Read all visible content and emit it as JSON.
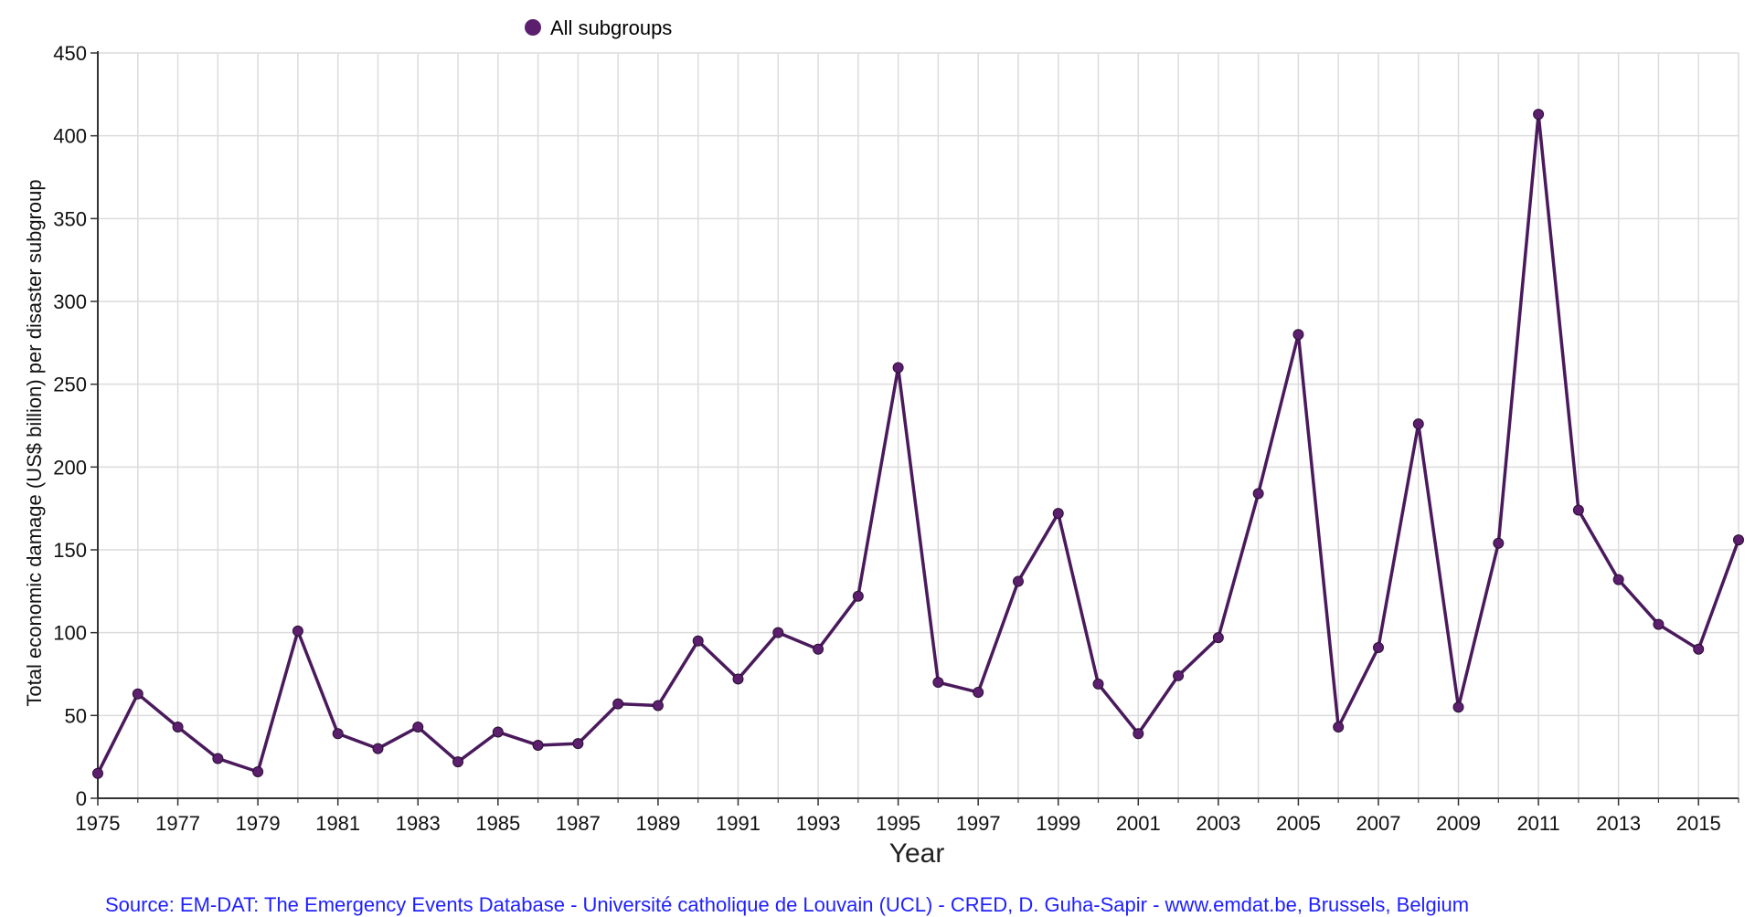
{
  "chart_data": {
    "type": "line",
    "legend": {
      "label": "All subgroups",
      "placement": "top-center"
    },
    "xlabel": "Year",
    "ylabel": "Total economic damage (US$ billion) per  disaster subgroup",
    "xlim": [
      1975,
      2016
    ],
    "ylim": [
      0,
      450
    ],
    "y_ticks": [
      "0",
      "50",
      "100",
      "150",
      "200",
      "250",
      "300",
      "350",
      "400",
      "450"
    ],
    "x_ticks": [
      "1975",
      "1977",
      "1979",
      "1981",
      "1983",
      "1985",
      "1987",
      "1989",
      "1991",
      "1993",
      "1995",
      "1997",
      "1999",
      "2001",
      "2003",
      "2005",
      "2007",
      "2009",
      "2011",
      "2013",
      "2015"
    ],
    "grid": true,
    "series": [
      {
        "name": "All subgroups",
        "color": "#4a1a5c",
        "marker_color": "#5c1f6e",
        "x": [
          1975,
          1976,
          1977,
          1978,
          1979,
          1980,
          1981,
          1982,
          1983,
          1984,
          1985,
          1986,
          1987,
          1988,
          1989,
          1990,
          1991,
          1992,
          1993,
          1994,
          1995,
          1996,
          1997,
          1998,
          1999,
          2000,
          2001,
          2002,
          2003,
          2004,
          2005,
          2006,
          2007,
          2008,
          2009,
          2010,
          2011,
          2012,
          2013,
          2014,
          2015,
          2016
        ],
        "values": [
          15,
          63,
          43,
          24,
          16,
          101,
          39,
          30,
          43,
          22,
          40,
          32,
          33,
          57,
          56,
          95,
          72,
          100,
          90,
          122,
          260,
          70,
          64,
          131,
          172,
          69,
          39,
          74,
          97,
          184,
          280,
          43,
          91,
          226,
          55,
          154,
          413,
          174,
          132,
          105,
          90,
          156
        ]
      }
    ]
  },
  "source": "Source: EM-DAT: The Emergency Events Database - Université catholique de Louvain (UCL) - CRED, D. Guha-Sapir - www.emdat.be, Brussels, Belgium"
}
